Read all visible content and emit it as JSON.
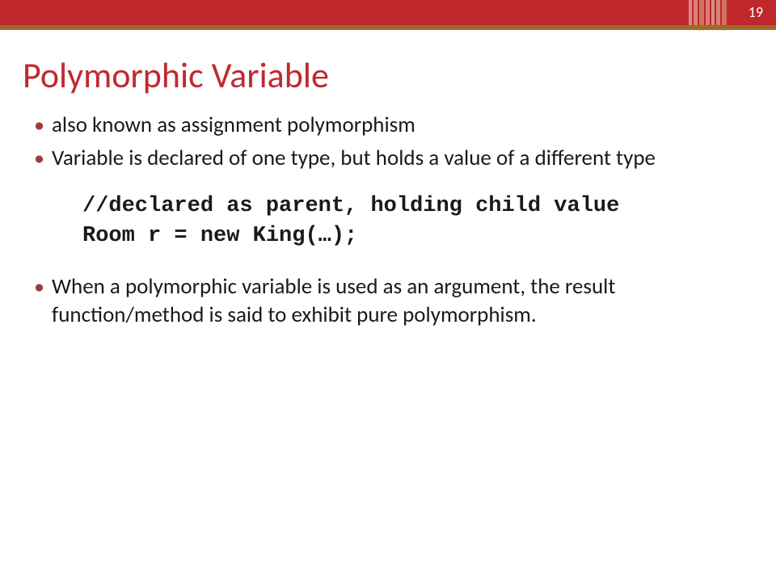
{
  "page_number": "19",
  "colors": {
    "red": "#c0272d",
    "brown": "#9c6a28",
    "title": "#bf2a2f",
    "bullet": "#9d3c3f",
    "text": "#1a1a1a",
    "stripe_a": "#d8b68a",
    "stripe_b": "#e6cfaf",
    "stripe_c": "#f1e2cc"
  },
  "title": "Polymorphic Variable",
  "bullets": {
    "b1": "also known as assignment polymorphism",
    "b2": "Variable is declared of one type, but holds a value of a different type",
    "b3": "When a polymorphic variable is used as an argument, the result function/method is said to exhibit pure polymorphism."
  },
  "code": {
    "line1": "//declared as parent, holding child value",
    "line2": "Room r = new King(…);"
  }
}
